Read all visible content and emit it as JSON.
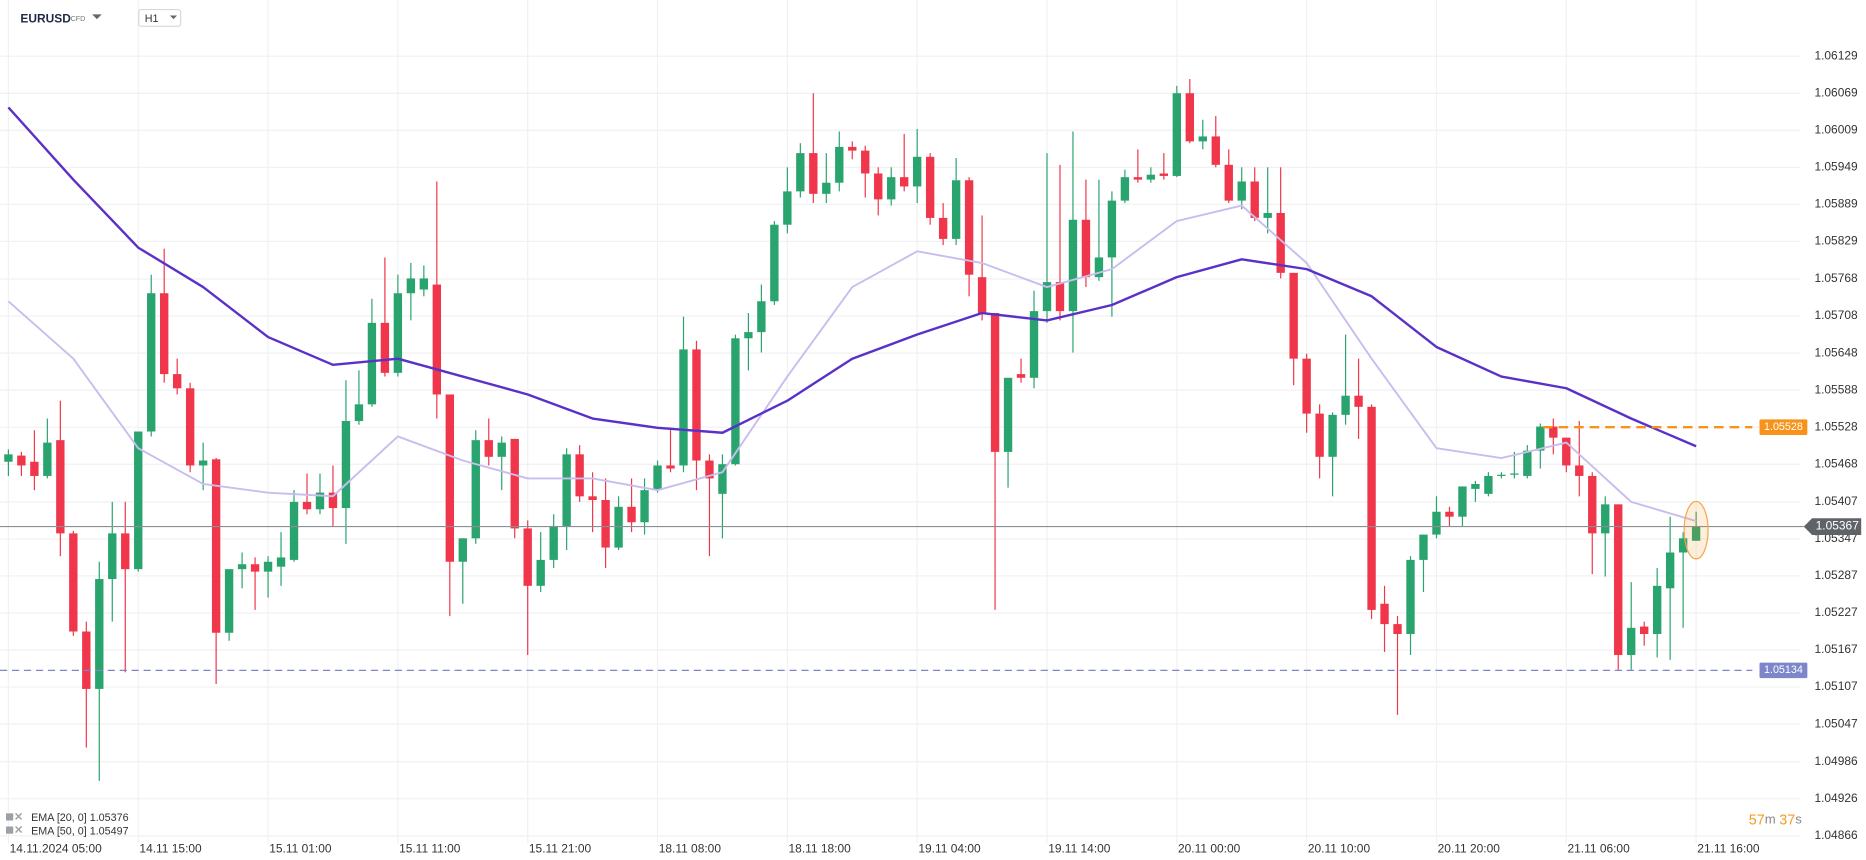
{
  "header": {
    "symbol": "EURUSD",
    "symbol_type": "CFD",
    "timeframe": "H1"
  },
  "chart_data": {
    "type": "candlestick",
    "categories": [
      "14.11.2024 05:00",
      null,
      null,
      null,
      null,
      null,
      null,
      null,
      null,
      null,
      "14.11 15:00",
      null,
      null,
      null,
      null,
      null,
      null,
      null,
      null,
      null,
      "15.11 01:00",
      null,
      null,
      null,
      null,
      null,
      null,
      null,
      null,
      null,
      "15.11 11:00",
      null,
      null,
      null,
      null,
      null,
      null,
      null,
      null,
      null,
      "15.11 21:00",
      null,
      null,
      null,
      null,
      null,
      null,
      null,
      null,
      null,
      "18.11 08:00",
      null,
      null,
      null,
      null,
      null,
      null,
      null,
      null,
      null,
      "18.11 18:00",
      null,
      null,
      null,
      null,
      null,
      null,
      null,
      null,
      null,
      "19.11 04:00",
      null,
      null,
      null,
      null,
      null,
      null,
      null,
      null,
      null,
      "19.11 14:00",
      null,
      null,
      null,
      null,
      null,
      null,
      null,
      null,
      null,
      "20.11 00:00",
      null,
      null,
      null,
      null,
      null,
      null,
      null,
      null,
      null,
      "20.11 10:00",
      null,
      null,
      null,
      null,
      null,
      null,
      null,
      null,
      null,
      "20.11 20:00",
      null,
      null,
      null,
      null,
      null,
      null,
      null,
      null,
      null,
      "21.11 06:00",
      null,
      null,
      null,
      null,
      null,
      null,
      null,
      null,
      null,
      "21.11 16:00"
    ],
    "open": [
      1.05472,
      1.05482,
      1.05472,
      1.05449,
      1.05507,
      1.05356,
      1.05197,
      1.05104,
      1.05282,
      1.05356,
      1.05298,
      1.05521,
      1.05745,
      1.05614,
      1.05591,
      1.05466,
      1.05476,
      1.05195,
      1.05298,
      1.05306,
      1.05294,
      1.05302,
      1.05313,
      1.05407,
      1.05395,
      1.05422,
      1.05397,
      1.05538,
      1.05565,
      1.05697,
      1.05616,
      1.05745,
      1.05751,
      1.05759,
      1.05581,
      1.0531,
      1.05348,
      1.05507,
      1.0548,
      1.05509,
      1.05364,
      1.05271,
      1.05313,
      1.05368,
      1.05484,
      1.05416,
      1.0541,
      1.05333,
      1.05399,
      1.05374,
      1.05426,
      1.05466,
      1.05466,
      1.05654,
      1.05474,
      1.0542,
      1.05468,
      1.05672,
      1.05682,
      1.05732,
      1.05856,
      1.0591,
      1.05972,
      1.05906,
      1.05924,
      1.05982,
      1.05976,
      1.05939,
      1.05897,
      1.05933,
      1.05918,
      1.05966,
      1.05867,
      1.05833,
      1.05928,
      1.05771,
      1.05713,
      1.05488,
      1.05614,
      1.05608,
      1.05716,
      1.05763,
      1.05716,
      1.05864,
      1.05771,
      1.05803,
      1.05895,
      1.05933,
      1.05929,
      1.05939,
      1.05935,
      1.06069,
      1.05991,
      1.05999,
      1.05953,
      1.05895,
      1.05926,
      1.05867,
      1.05875,
      1.05778,
      1.05639,
      1.0555,
      1.0548,
      1.05548,
      1.05579,
      1.05561,
      1.05242,
      1.05209,
      1.05193,
      1.05313,
      1.05354,
      1.05391,
      1.05383,
      1.05428,
      1.0542,
      1.05449,
      1.05451,
      1.05449,
      1.0549,
      1.05529,
      1.05511,
      1.05466,
      1.05449,
      1.05356,
      1.05403,
      1.05159,
      1.05205,
      1.05193,
      1.05267,
      1.05325,
      1.05344
    ],
    "high": [
      1.05492,
      1.05488,
      1.05523,
      1.05542,
      1.05571,
      1.0536,
      1.05213,
      1.0531,
      1.05407,
      1.05407,
      1.05521,
      1.05775,
      1.05817,
      1.05639,
      1.056,
      1.05503,
      1.05478,
      1.05298,
      1.05325,
      1.05317,
      1.05319,
      1.05358,
      1.05426,
      1.05453,
      1.05453,
      1.05466,
      1.05604,
      1.0562,
      1.05736,
      1.05803,
      1.05775,
      1.05794,
      1.0579,
      1.05926,
      1.05581,
      1.05348,
      1.05523,
      1.05542,
      1.05513,
      1.05509,
      1.05377,
      1.05358,
      1.05387,
      1.05494,
      1.05499,
      1.05455,
      1.05445,
      1.05416,
      1.05445,
      1.05445,
      1.05474,
      1.05527,
      1.05707,
      1.05668,
      1.05484,
      1.05484,
      1.05678,
      1.05713,
      1.05759,
      1.05862,
      1.05949,
      1.05988,
      1.06069,
      1.05972,
      1.06007,
      1.05991,
      1.05984,
      1.05949,
      1.05949,
      1.06003,
      1.06011,
      1.05972,
      1.05891,
      1.05964,
      1.05933,
      1.05871,
      1.05713,
      1.05608,
      1.05639,
      1.05749,
      1.05972,
      1.05953,
      1.06007,
      1.05929,
      1.05929,
      1.0591,
      1.05945,
      1.05978,
      1.05949,
      1.05972,
      1.06081,
      1.06092,
      1.06026,
      1.06032,
      1.05978,
      1.05949,
      1.05949,
      1.05949,
      1.05949,
      1.05778,
      1.05647,
      1.05565,
      1.05552,
      1.05678,
      1.05639,
      1.05565,
      1.05271,
      1.05222,
      1.05319,
      1.05354,
      1.05416,
      1.05399,
      1.05432,
      1.05441,
      1.05455,
      1.05455,
      1.05488,
      1.05499,
      1.05534,
      1.05542,
      1.05511,
      1.05538,
      1.05455,
      1.05416,
      1.05403,
      1.05277,
      1.05213,
      1.053,
      1.05383,
      1.05358,
      1.05391
    ],
    "low": [
      1.05449,
      1.05449,
      1.05426,
      1.05445,
      1.05319,
      1.0519,
      1.05009,
      1.04955,
      1.05213,
      1.05131,
      1.05294,
      1.05513,
      1.056,
      1.05581,
      1.05455,
      1.05426,
      1.05112,
      1.05182,
      1.05267,
      1.05232,
      1.05252,
      1.05271,
      1.0531,
      1.05387,
      1.05387,
      1.05368,
      1.05339,
      1.05532,
      1.05561,
      1.0561,
      1.0561,
      1.05701,
      1.0574,
      1.05542,
      1.05222,
      1.05242,
      1.05339,
      1.05466,
      1.05426,
      1.05348,
      1.05159,
      1.05261,
      1.053,
      1.05329,
      1.05407,
      1.05358,
      1.053,
      1.05329,
      1.05358,
      1.05354,
      1.05422,
      1.05455,
      1.05455,
      1.05426,
      1.05319,
      1.05348,
      1.05466,
      1.0562,
      1.05649,
      1.05726,
      1.05842,
      1.059,
      1.05891,
      1.05891,
      1.0591,
      1.05962,
      1.059,
      1.05871,
      1.05887,
      1.0591,
      1.05891,
      1.05856,
      1.05823,
      1.05823,
      1.0574,
      1.05701,
      1.05232,
      1.0543,
      1.056,
      1.05591,
      1.05697,
      1.05701,
      1.05649,
      1.05755,
      1.05765,
      1.05707,
      1.05891,
      1.05924,
      1.05924,
      1.05929,
      1.05933,
      1.05988,
      1.05978,
      1.05949,
      1.05891,
      1.05881,
      1.05862,
      1.05842,
      1.05769,
      1.05596,
      1.05519,
      1.05445,
      1.05416,
      1.05532,
      1.05509,
      1.05217,
      1.05164,
      1.05062,
      1.05159,
      1.05261,
      1.05348,
      1.05368,
      1.05368,
      1.05407,
      1.05416,
      1.05445,
      1.05445,
      1.05445,
      1.05461,
      1.05484,
      1.05455,
      1.05416,
      1.0529,
      1.05286,
      1.05135,
      1.05135,
      1.05174,
      1.05155,
      1.05151,
      1.05203,
      1.05344
    ],
    "close": [
      1.05484,
      1.05466,
      1.05449,
      1.05503,
      1.05356,
      1.05197,
      1.05104,
      1.05282,
      1.05356,
      1.05298,
      1.05521,
      1.05745,
      1.05614,
      1.05591,
      1.05466,
      1.05474,
      1.05195,
      1.05298,
      1.05306,
      1.05294,
      1.0531,
      1.05317,
      1.05407,
      1.05395,
      1.05422,
      1.05397,
      1.05538,
      1.05565,
      1.05697,
      1.05616,
      1.05745,
      1.05769,
      1.05769,
      1.05581,
      1.0531,
      1.05348,
      1.05507,
      1.0548,
      1.05503,
      1.05364,
      1.05271,
      1.05313,
      1.05368,
      1.05484,
      1.05416,
      1.0541,
      1.05333,
      1.05399,
      1.05374,
      1.05426,
      1.05466,
      1.05461,
      1.05654,
      1.05474,
      1.05445,
      1.05468,
      1.05672,
      1.05682,
      1.05732,
      1.05856,
      1.0591,
      1.05972,
      1.05906,
      1.05924,
      1.05982,
      1.05976,
      1.05939,
      1.05897,
      1.05933,
      1.05918,
      1.05966,
      1.05867,
      1.05833,
      1.05928,
      1.05775,
      1.05713,
      1.05488,
      1.05608,
      1.05608,
      1.05716,
      1.05763,
      1.05716,
      1.05864,
      1.05771,
      1.05803,
      1.05895,
      1.05933,
      1.05929,
      1.05937,
      1.05935,
      1.06069,
      1.05991,
      1.05999,
      1.05953,
      1.05895,
      1.05926,
      1.05867,
      1.05875,
      1.05778,
      1.05639,
      1.0555,
      1.0548,
      1.05548,
      1.05579,
      1.05561,
      1.05232,
      1.05209,
      1.05193,
      1.05313,
      1.05354,
      1.05391,
      1.05383,
      1.05432,
      1.05436,
      1.05449,
      1.05451,
      1.05453,
      1.0549,
      1.05529,
      1.05511,
      1.05466,
      1.05449,
      1.05356,
      1.05403,
      1.05159,
      1.05203,
      1.05193,
      1.05271,
      1.05325,
      1.05348,
      1.05367
    ],
    "up_color": "#2aa46e",
    "down_color": "#f0364a",
    "series": [
      {
        "name": "EMA [20, 0]",
        "color": "#c9bdee",
        "x": [
          0,
          5,
          10,
          15,
          20,
          25,
          30,
          35,
          40,
          45,
          50,
          55,
          60,
          65,
          70,
          75,
          80,
          85,
          90,
          95,
          100,
          105,
          110,
          115,
          120,
          125,
          130
        ],
        "values": [
          1.05732,
          1.05639,
          1.05494,
          1.05436,
          1.05422,
          1.05416,
          1.05513,
          1.05474,
          1.05445,
          1.05445,
          1.05426,
          1.05455,
          1.0561,
          1.05755,
          1.05813,
          1.05794,
          1.05755,
          1.05784,
          1.05862,
          1.05887,
          1.05794,
          1.05639,
          1.05494,
          1.05478,
          1.05503,
          1.05407,
          1.05376
        ]
      },
      {
        "name": "EMA [50, 0]",
        "color": "#5a31c8",
        "x": [
          0,
          5,
          10,
          15,
          20,
          25,
          30,
          35,
          40,
          45,
          50,
          55,
          60,
          65,
          70,
          75,
          80,
          85,
          90,
          95,
          100,
          105,
          110,
          115,
          120,
          125,
          130
        ],
        "values": [
          1.06046,
          1.05929,
          1.05819,
          1.05755,
          1.05674,
          1.05629,
          1.05639,
          1.0561,
          1.05581,
          1.05542,
          1.05527,
          1.05519,
          1.05571,
          1.05639,
          1.05678,
          1.05713,
          1.05701,
          1.05726,
          1.05771,
          1.058,
          1.05784,
          1.0574,
          1.05658,
          1.0561,
          1.05591,
          1.05542,
          1.05497
        ]
      }
    ],
    "levels": [
      {
        "value": 1.05528,
        "color": "#f7931a"
      },
      {
        "value": 1.05134,
        "color": "#7d86c9"
      }
    ],
    "last_price": 1.05367,
    "ylim": [
      1.04854,
      1.0622
    ],
    "yticks": [
      1.06129,
      1.06069,
      1.06009,
      1.05949,
      1.05889,
      1.05829,
      1.05768,
      1.05708,
      1.05648,
      1.05588,
      1.05528,
      1.05468,
      1.05407,
      1.05347,
      1.05287,
      1.05227,
      1.05167,
      1.05107,
      1.05047,
      1.04986,
      1.04926,
      1.04866
    ],
    "grid": true
  },
  "countdown": {
    "minutes": "57",
    "minutes_unit": "m",
    "seconds": "37",
    "seconds_unit": "s"
  }
}
